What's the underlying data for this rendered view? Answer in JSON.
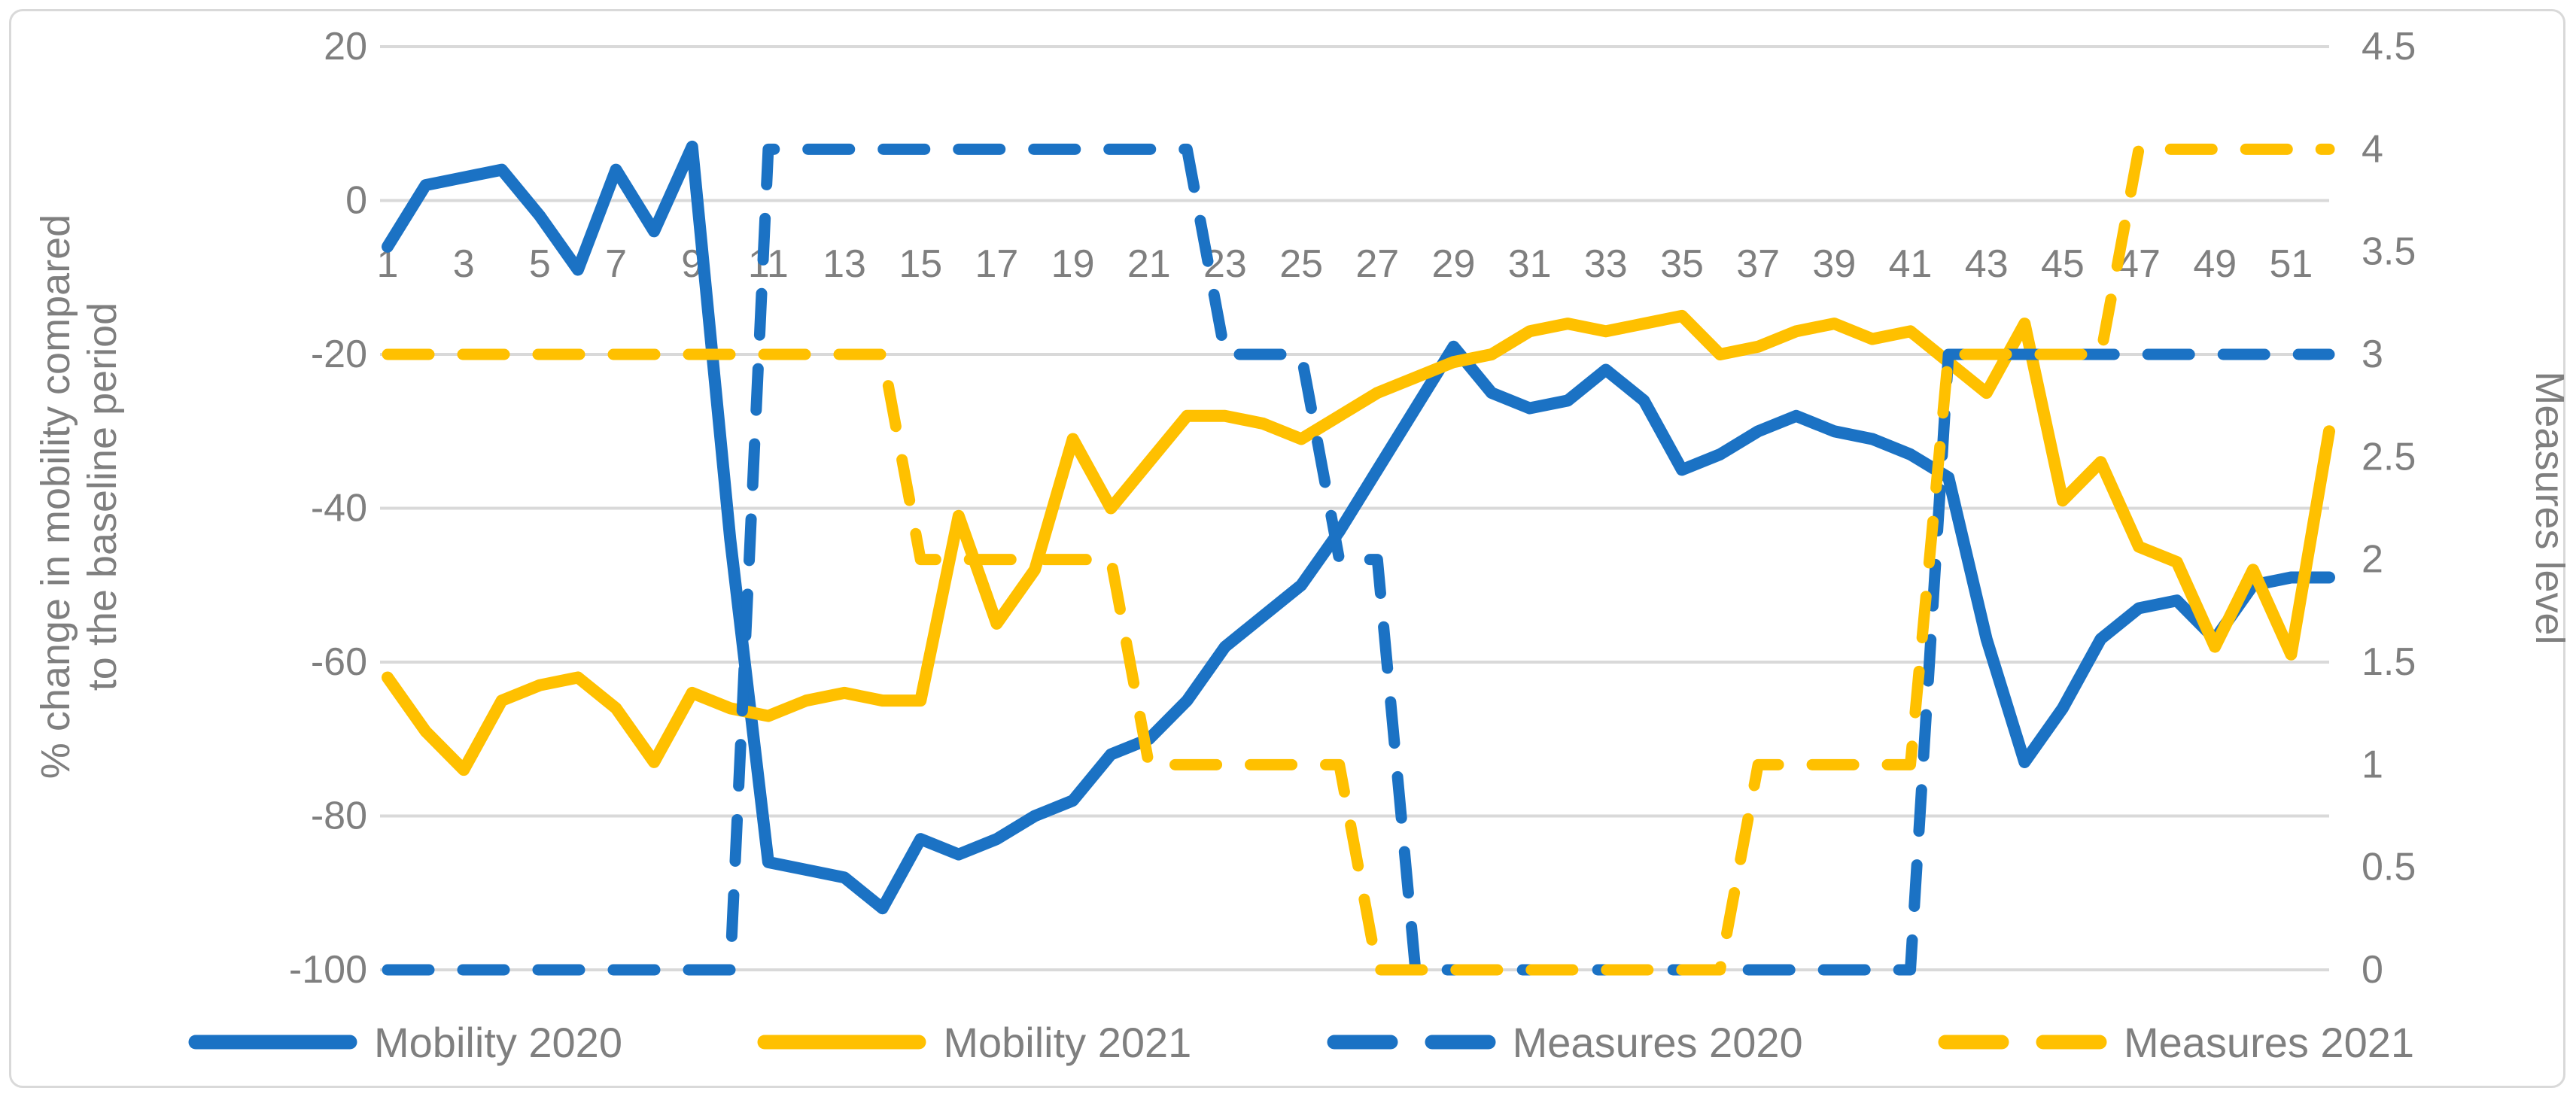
{
  "chart_data": {
    "type": "line",
    "x_axis": {
      "unit": "week",
      "weeks_min": 1,
      "weeks_max": 52,
      "shown_tick_labels": [
        "1",
        "3",
        "5",
        "7",
        "9",
        "11",
        "13",
        "15",
        "17",
        "19",
        "21",
        "23",
        "25",
        "27",
        "29",
        "31",
        "33",
        "35",
        "37",
        "39",
        "41",
        "43",
        "45",
        "47",
        "49",
        "51"
      ]
    },
    "left_axis": {
      "title_line1": "% change in mobility compared",
      "title_line2": "to the baseline period",
      "min": -100,
      "max": 20,
      "ticks": [
        20,
        0,
        -20,
        -40,
        -60,
        -80,
        -100
      ]
    },
    "right_axis": {
      "title": "Measures level",
      "min": 0,
      "max": 4.5,
      "ticks": [
        4.5,
        4,
        3.5,
        3,
        2.5,
        2,
        1.5,
        1,
        0.5,
        0
      ]
    },
    "grid": true,
    "legend_position": "bottom",
    "series": [
      {
        "name": "Mobility 2020",
        "axis": "left",
        "style": "solid",
        "color": "#1B72C4",
        "values": [
          -6,
          2,
          3,
          4,
          -2,
          -9,
          4,
          -4,
          7,
          -44,
          -86,
          -87,
          -88,
          -92,
          -83,
          -85,
          -83,
          -80,
          -78,
          -72,
          -70,
          -65,
          -58,
          -54,
          -50,
          -43,
          -35,
          -27,
          -19,
          -25,
          -27,
          -26,
          -22,
          -26,
          -35,
          -33,
          -30,
          -28,
          -30,
          -31,
          -33,
          -36,
          -57,
          -73,
          -66,
          -57,
          -53,
          -52,
          -57,
          -50,
          -49,
          -49
        ]
      },
      {
        "name": "Mobility 2021",
        "axis": "left",
        "style": "solid",
        "color": "#FFC000",
        "values": [
          -62,
          -69,
          -74,
          -65,
          -63,
          -62,
          -66,
          -73,
          -64,
          -66,
          -67,
          -65,
          -64,
          -65,
          -65,
          -41,
          -55,
          -48,
          -31,
          -40,
          -34,
          -28,
          -28,
          -29,
          -31,
          -28,
          -25,
          -23,
          -21,
          -20,
          -17,
          -16,
          -17,
          -16,
          -15,
          -20,
          -19,
          -17,
          -16,
          -18,
          -17,
          -21,
          -25,
          -16,
          -39,
          -34,
          -45,
          -47,
          -58,
          -48,
          -59,
          -30
        ]
      },
      {
        "name": "Measures 2020",
        "axis": "right",
        "style": "dashed",
        "color": "#1B72C4",
        "values": [
          0,
          0,
          0,
          0,
          0,
          0,
          0,
          0,
          0,
          0,
          4,
          4,
          4,
          4,
          4,
          4,
          4,
          4,
          4,
          4,
          4,
          4,
          3,
          3,
          3,
          2,
          2,
          0,
          0,
          0,
          0,
          0,
          0,
          0,
          0,
          0,
          0,
          0,
          0,
          0,
          0,
          3,
          3,
          3,
          3,
          3,
          3,
          3,
          3,
          3,
          3,
          3
        ]
      },
      {
        "name": "Measures 2021",
        "axis": "right",
        "style": "dashed",
        "color": "#FFC000",
        "values": [
          3,
          3,
          3,
          3,
          3,
          3,
          3,
          3,
          3,
          3,
          3,
          3,
          3,
          3,
          2,
          2,
          2,
          2,
          2,
          2,
          1,
          1,
          1,
          1,
          1,
          1,
          0,
          0,
          0,
          0,
          0,
          0,
          0,
          0,
          0,
          0,
          1,
          1,
          1,
          1,
          1,
          3,
          3,
          3,
          3,
          3,
          4,
          4,
          4,
          4,
          4,
          4
        ]
      }
    ],
    "colors": {
      "blue": "#1B72C4",
      "gold": "#FFC000",
      "gridline": "#D9D9D9",
      "label_text": "#7F7F7F",
      "panel_border": "#D9D9D9"
    }
  }
}
